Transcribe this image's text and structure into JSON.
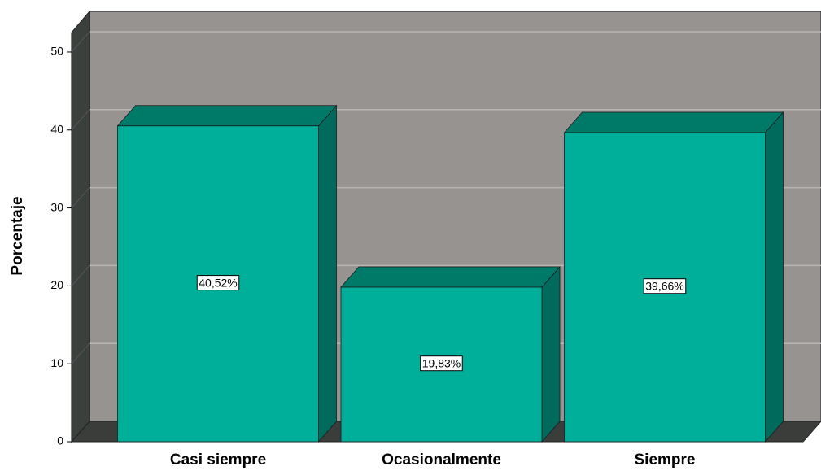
{
  "chart_data": {
    "type": "bar3d",
    "y_label": "Porcentaje",
    "categories": [
      "Casi siempre",
      "Ocasionalmente",
      "Siempre"
    ],
    "values": [
      40.52,
      19.83,
      39.66
    ],
    "value_labels": [
      "40,52%",
      "19,83%",
      "39,66%"
    ],
    "color": "#00af9a",
    "top_color": "#007a68",
    "side_color": "#006b5c",
    "ylim": [
      0,
      52.5
    ],
    "yticks": [
      0,
      10,
      20,
      30,
      40,
      50
    ],
    "grid": true
  }
}
